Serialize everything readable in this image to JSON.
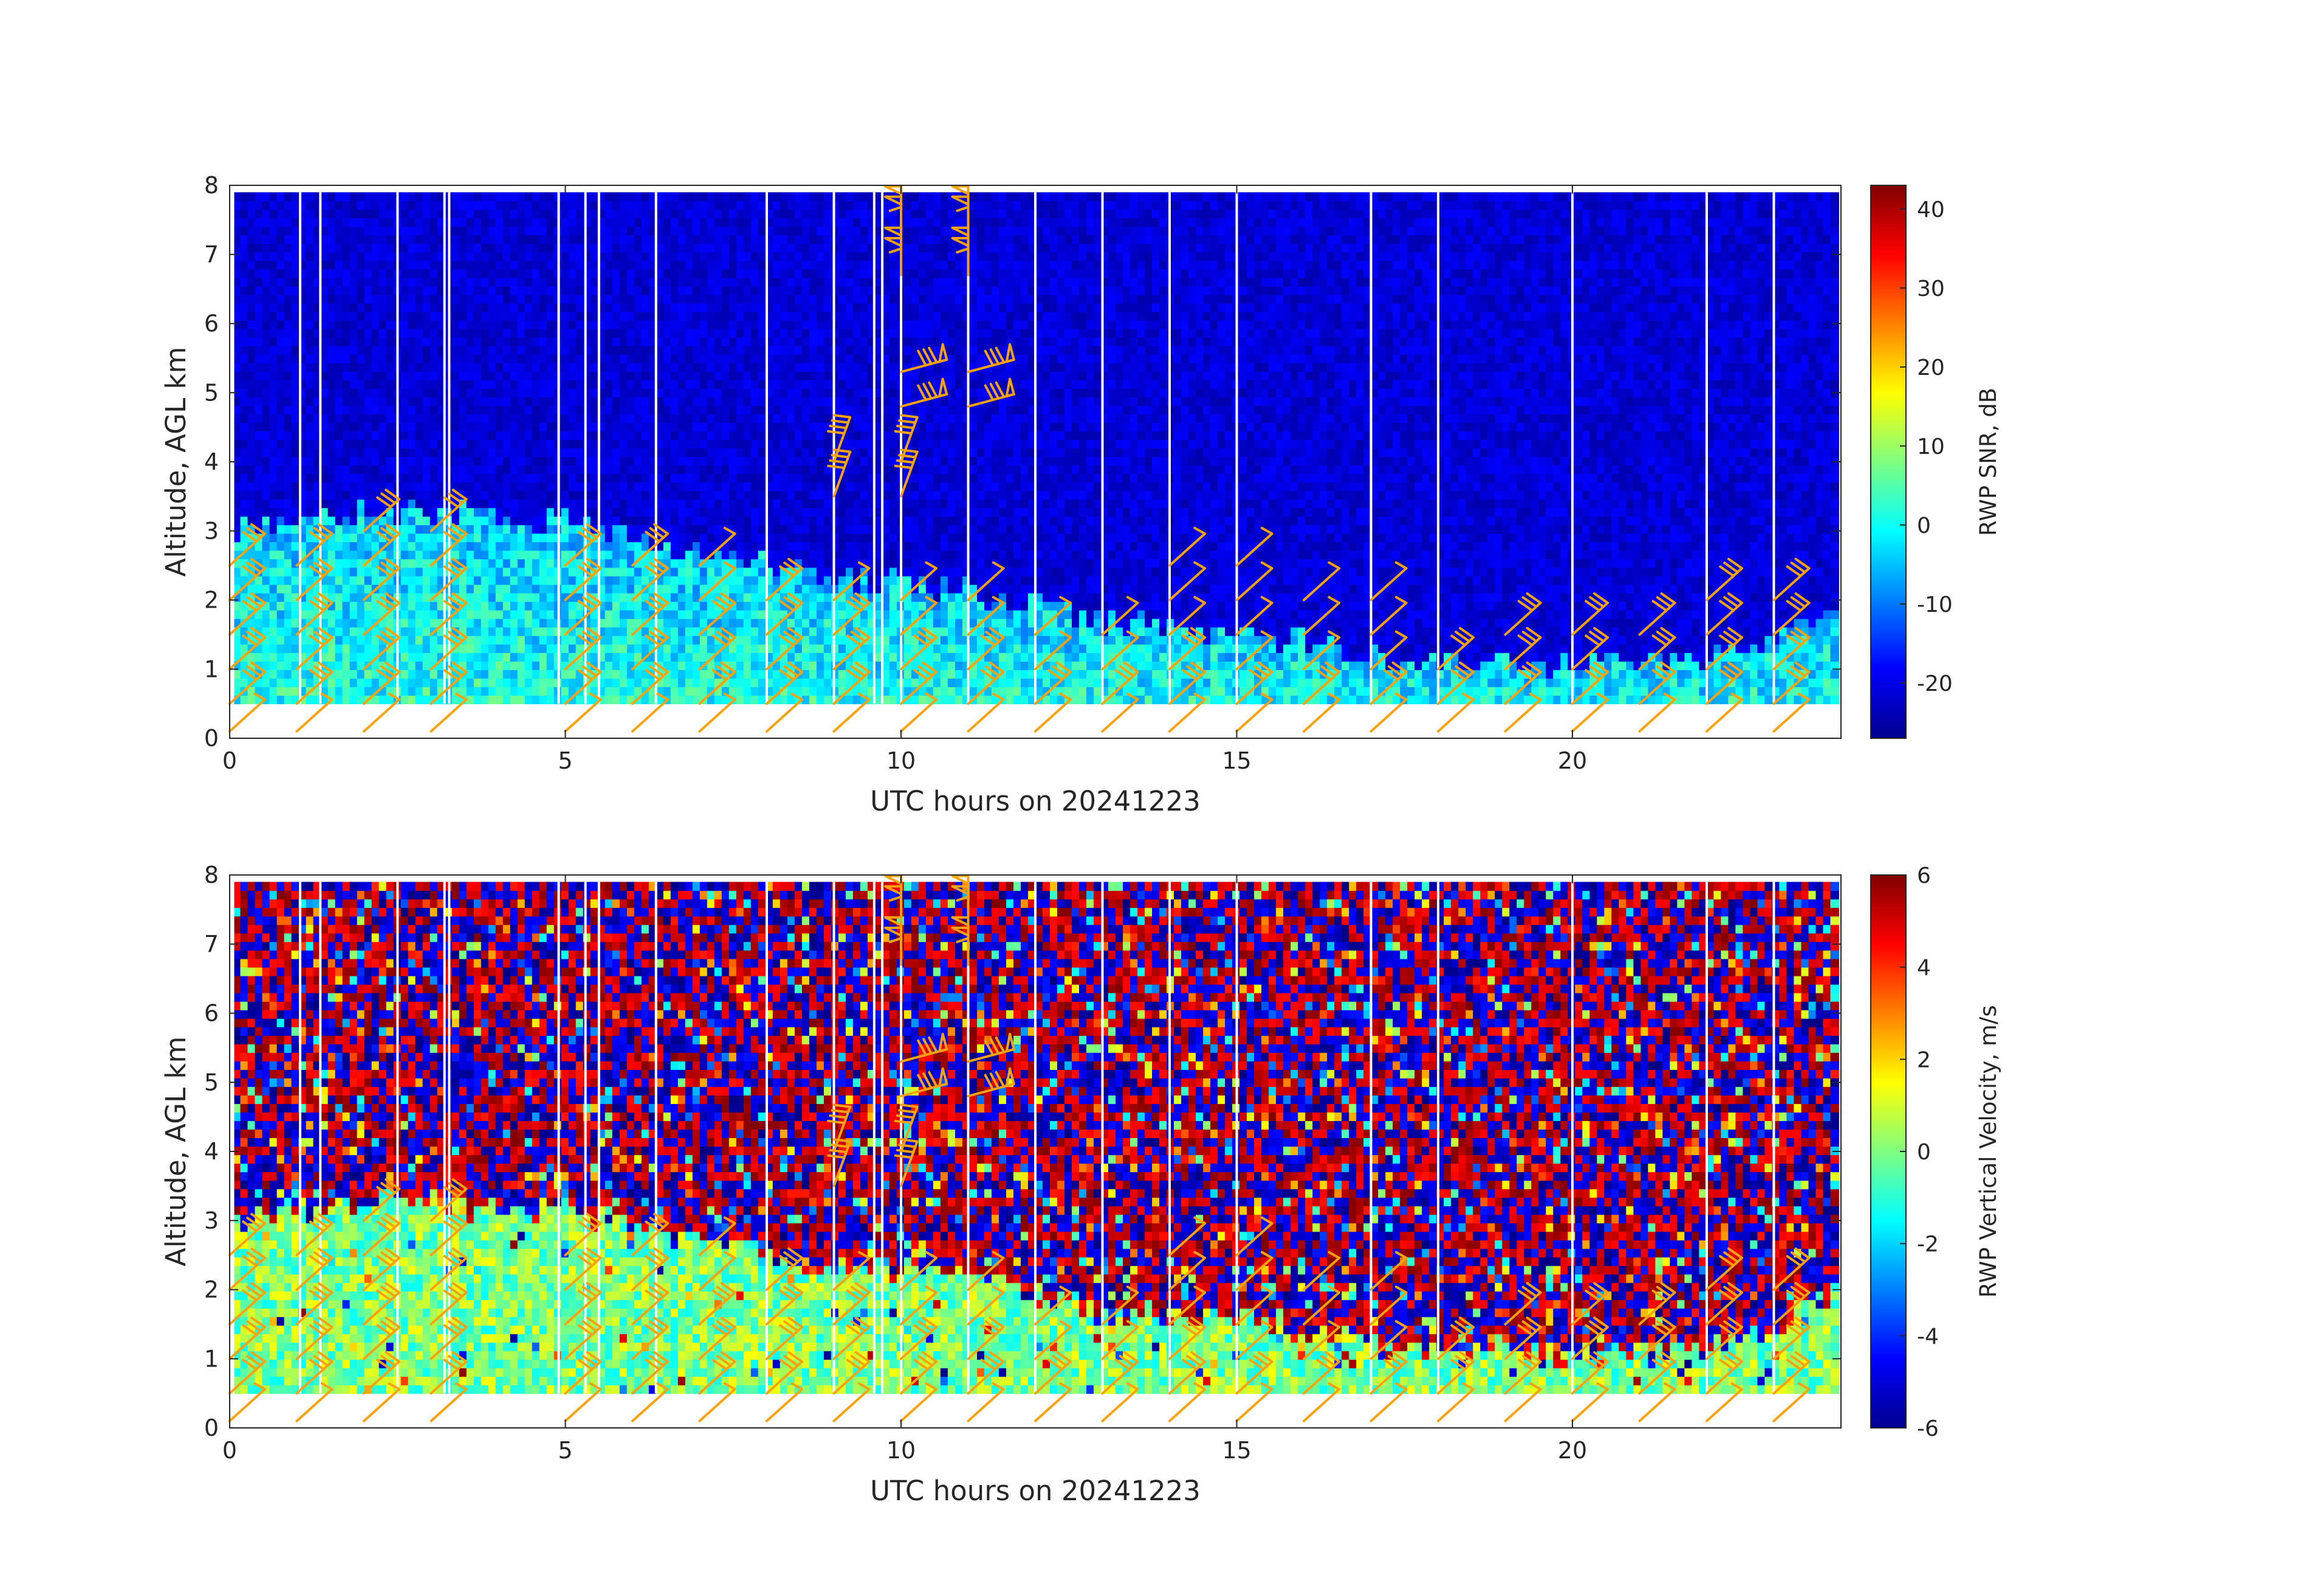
{
  "chart_data": [
    {
      "type": "heatmap",
      "name": "snr-panel",
      "xlabel": "UTC hours on 20241223",
      "ylabel": "Altitude, AGL km",
      "colorbar_label": "RWP SNR, dB",
      "colormap": "jet",
      "xlim": [
        0,
        24
      ],
      "ylim": [
        0,
        8
      ],
      "xticks": [
        "0",
        "5",
        "10",
        "15",
        "20"
      ],
      "yticks": [
        "0",
        "1",
        "2",
        "3",
        "4",
        "5",
        "6",
        "7",
        "8"
      ],
      "clim": [
        -27,
        43
      ],
      "colorbar_ticks": [
        "-20",
        "-10",
        "0",
        "10",
        "20",
        "30",
        "40"
      ],
      "background_level": -21,
      "boundary_layer_top_km": [
        [
          0,
          3.0
        ],
        [
          2,
          3.2
        ],
        [
          5,
          3.1
        ],
        [
          7,
          2.6
        ],
        [
          9,
          2.3
        ],
        [
          10,
          2.2
        ],
        [
          12,
          1.9
        ],
        [
          13,
          1.6
        ],
        [
          15,
          1.5
        ],
        [
          18,
          1.0
        ],
        [
          20,
          1.0
        ],
        [
          22,
          1.1
        ],
        [
          24,
          1.9
        ]
      ],
      "boundary_layer_level": 2,
      "data_bottom_km": 0.5,
      "gaps_hours": [
        0.05,
        1.05,
        1.35,
        2.5,
        3.2,
        3.27,
        4.9,
        5.3,
        5.5,
        6.35,
        8.0,
        9.0,
        9.6,
        9.72,
        10.0,
        11.0,
        12.0,
        13.0,
        14.0,
        15.0,
        17.0,
        18.0,
        20.0,
        22.0,
        23.0
      ]
    },
    {
      "type": "heatmap",
      "name": "velocity-panel",
      "xlabel": "UTC hours on 20241223",
      "ylabel": "Altitude, AGL km",
      "colorbar_label": "RWP Vertical Velocity, m/s",
      "colormap": "jet",
      "xlim": [
        0,
        24
      ],
      "ylim": [
        0,
        8
      ],
      "xticks": [
        "0",
        "5",
        "10",
        "15",
        "20"
      ],
      "yticks": [
        "0",
        "1",
        "2",
        "3",
        "4",
        "5",
        "6",
        "7",
        "8"
      ],
      "clim": [
        -6,
        6
      ],
      "colorbar_ticks": [
        "-6",
        "-4",
        "-2",
        "0",
        "2",
        "4",
        "6"
      ],
      "boundary_layer_top_km": [
        [
          0,
          3.0
        ],
        [
          2,
          3.2
        ],
        [
          5,
          3.1
        ],
        [
          7,
          2.6
        ],
        [
          9,
          2.3
        ],
        [
          10,
          2.2
        ],
        [
          12,
          1.9
        ],
        [
          13,
          1.6
        ],
        [
          15,
          1.5
        ],
        [
          18,
          1.0
        ],
        [
          20,
          1.0
        ],
        [
          22,
          1.1
        ],
        [
          24,
          1.9
        ]
      ],
      "data_bottom_km": 0.5,
      "gaps_hours": [
        0.05,
        1.05,
        1.35,
        2.5,
        3.2,
        3.27,
        4.9,
        5.3,
        5.5,
        6.35,
        8.0,
        9.0,
        9.6,
        9.72,
        10.0,
        11.0,
        12.0,
        13.0,
        14.0,
        15.0,
        17.0,
        18.0,
        20.0,
        22.0,
        23.0
      ]
    }
  ],
  "wind_barbs": {
    "color": "#f7a30f",
    "profiles": [
      {
        "t": 0.0,
        "levels": [
          [
            0.1,
            "low"
          ],
          [
            0.5,
            "mid"
          ],
          [
            1.0,
            "mid"
          ],
          [
            1.5,
            "mid"
          ],
          [
            2.0,
            "mid"
          ],
          [
            2.5,
            "mid"
          ]
        ]
      },
      {
        "t": 1.0,
        "levels": [
          [
            0.1,
            "low"
          ],
          [
            0.5,
            "mid"
          ],
          [
            1.0,
            "mid"
          ],
          [
            1.5,
            "mid"
          ],
          [
            2.0,
            "mid"
          ],
          [
            2.5,
            "mid"
          ]
        ]
      },
      {
        "t": 2.0,
        "levels": [
          [
            0.1,
            "low"
          ],
          [
            0.5,
            "mid"
          ],
          [
            1.0,
            "mid"
          ],
          [
            1.5,
            "mid"
          ],
          [
            2.0,
            "mid"
          ],
          [
            2.5,
            "mid"
          ],
          [
            3.0,
            "mid"
          ]
        ]
      },
      {
        "t": 3.0,
        "levels": [
          [
            0.1,
            "low"
          ],
          [
            0.5,
            "mid"
          ],
          [
            1.0,
            "mid"
          ],
          [
            1.5,
            "mid"
          ],
          [
            2.0,
            "mid"
          ],
          [
            2.5,
            "mid"
          ],
          [
            3.0,
            "mid"
          ]
        ]
      },
      {
        "t": 5.0,
        "levels": [
          [
            0.1,
            "low"
          ],
          [
            0.5,
            "mid"
          ],
          [
            1.0,
            "mid"
          ],
          [
            1.5,
            "mid"
          ],
          [
            2.0,
            "mid"
          ],
          [
            2.5,
            "mid"
          ]
        ]
      },
      {
        "t": 6.0,
        "levels": [
          [
            0.1,
            "low"
          ],
          [
            0.5,
            "mid"
          ],
          [
            1.0,
            "mid"
          ],
          [
            1.5,
            "mid"
          ],
          [
            2.0,
            "mid"
          ],
          [
            2.5,
            "mid"
          ]
        ]
      },
      {
        "t": 7.0,
        "levels": [
          [
            0.1,
            "low"
          ],
          [
            0.5,
            "mid"
          ],
          [
            1.0,
            "mid"
          ],
          [
            1.5,
            "mid"
          ],
          [
            2.0,
            "low"
          ],
          [
            2.5,
            "low"
          ]
        ]
      },
      {
        "t": 8.0,
        "levels": [
          [
            0.1,
            "low"
          ],
          [
            0.5,
            "mid"
          ],
          [
            1.0,
            "mid"
          ],
          [
            1.5,
            "mid"
          ],
          [
            2.0,
            "mid"
          ]
        ]
      },
      {
        "t": 9.0,
        "levels": [
          [
            0.1,
            "low"
          ],
          [
            0.5,
            "mid"
          ],
          [
            1.0,
            "mid"
          ],
          [
            1.5,
            "mid"
          ],
          [
            2.0,
            "low"
          ],
          [
            3.5,
            "upper"
          ],
          [
            4.0,
            "upper"
          ]
        ]
      },
      {
        "t": 10.0,
        "levels": [
          [
            0.1,
            "low"
          ],
          [
            0.5,
            "mid"
          ],
          [
            1.0,
            "mid"
          ],
          [
            1.5,
            "low"
          ],
          [
            2.0,
            "low"
          ],
          [
            3.5,
            "upper"
          ],
          [
            4.0,
            "upper"
          ],
          [
            4.8,
            "high"
          ],
          [
            5.3,
            "high"
          ],
          [
            6.7,
            "flag"
          ],
          [
            7.3,
            "flag"
          ]
        ]
      },
      {
        "t": 11.0,
        "levels": [
          [
            0.1,
            "low"
          ],
          [
            0.5,
            "mid"
          ],
          [
            1.0,
            "mid"
          ],
          [
            1.5,
            "low"
          ],
          [
            2.0,
            "low"
          ],
          [
            4.8,
            "high"
          ],
          [
            5.3,
            "high"
          ],
          [
            6.7,
            "flag"
          ],
          [
            7.3,
            "flag"
          ]
        ]
      },
      {
        "t": 12.0,
        "levels": [
          [
            0.1,
            "low"
          ],
          [
            0.5,
            "mid"
          ],
          [
            1.0,
            "low"
          ],
          [
            1.5,
            "low"
          ]
        ]
      },
      {
        "t": 13.0,
        "levels": [
          [
            0.1,
            "low"
          ],
          [
            0.5,
            "mid"
          ],
          [
            1.0,
            "low"
          ],
          [
            1.5,
            "low"
          ]
        ]
      },
      {
        "t": 14.0,
        "levels": [
          [
            0.1,
            "low"
          ],
          [
            0.5,
            "mid"
          ],
          [
            1.0,
            "mid"
          ],
          [
            1.5,
            "low"
          ],
          [
            2.0,
            "low"
          ],
          [
            2.5,
            "low"
          ]
        ]
      },
      {
        "t": 15.0,
        "levels": [
          [
            0.1,
            "low"
          ],
          [
            0.5,
            "mid"
          ],
          [
            1.0,
            "low"
          ],
          [
            1.5,
            "low"
          ],
          [
            2.0,
            "low"
          ],
          [
            2.5,
            "low"
          ]
        ]
      },
      {
        "t": 16.0,
        "levels": [
          [
            0.1,
            "low"
          ],
          [
            0.5,
            "mid"
          ],
          [
            1.0,
            "low"
          ],
          [
            1.5,
            "low"
          ],
          [
            2.0,
            "low"
          ]
        ]
      },
      {
        "t": 17.0,
        "levels": [
          [
            0.1,
            "low"
          ],
          [
            0.5,
            "mid"
          ],
          [
            1.0,
            "low"
          ],
          [
            1.5,
            "low"
          ],
          [
            2.0,
            "low"
          ]
        ]
      },
      {
        "t": 18.0,
        "levels": [
          [
            0.1,
            "low"
          ],
          [
            0.5,
            "mid"
          ],
          [
            1.0,
            "mid"
          ]
        ]
      },
      {
        "t": 19.0,
        "levels": [
          [
            0.1,
            "low"
          ],
          [
            0.5,
            "mid"
          ],
          [
            1.0,
            "mid"
          ],
          [
            1.5,
            "mid"
          ]
        ]
      },
      {
        "t": 20.0,
        "levels": [
          [
            0.1,
            "low"
          ],
          [
            0.5,
            "mid"
          ],
          [
            1.0,
            "mid"
          ],
          [
            1.5,
            "mid"
          ]
        ]
      },
      {
        "t": 21.0,
        "levels": [
          [
            0.1,
            "low"
          ],
          [
            0.5,
            "mid"
          ],
          [
            1.0,
            "mid"
          ],
          [
            1.5,
            "mid"
          ]
        ]
      },
      {
        "t": 22.0,
        "levels": [
          [
            0.1,
            "low"
          ],
          [
            0.5,
            "mid"
          ],
          [
            1.0,
            "mid"
          ],
          [
            1.5,
            "mid"
          ],
          [
            2.0,
            "mid"
          ]
        ]
      },
      {
        "t": 23.0,
        "levels": [
          [
            0.1,
            "low"
          ],
          [
            0.5,
            "mid"
          ],
          [
            1.0,
            "mid"
          ],
          [
            1.5,
            "mid"
          ],
          [
            2.0,
            "mid"
          ]
        ]
      }
    ]
  }
}
